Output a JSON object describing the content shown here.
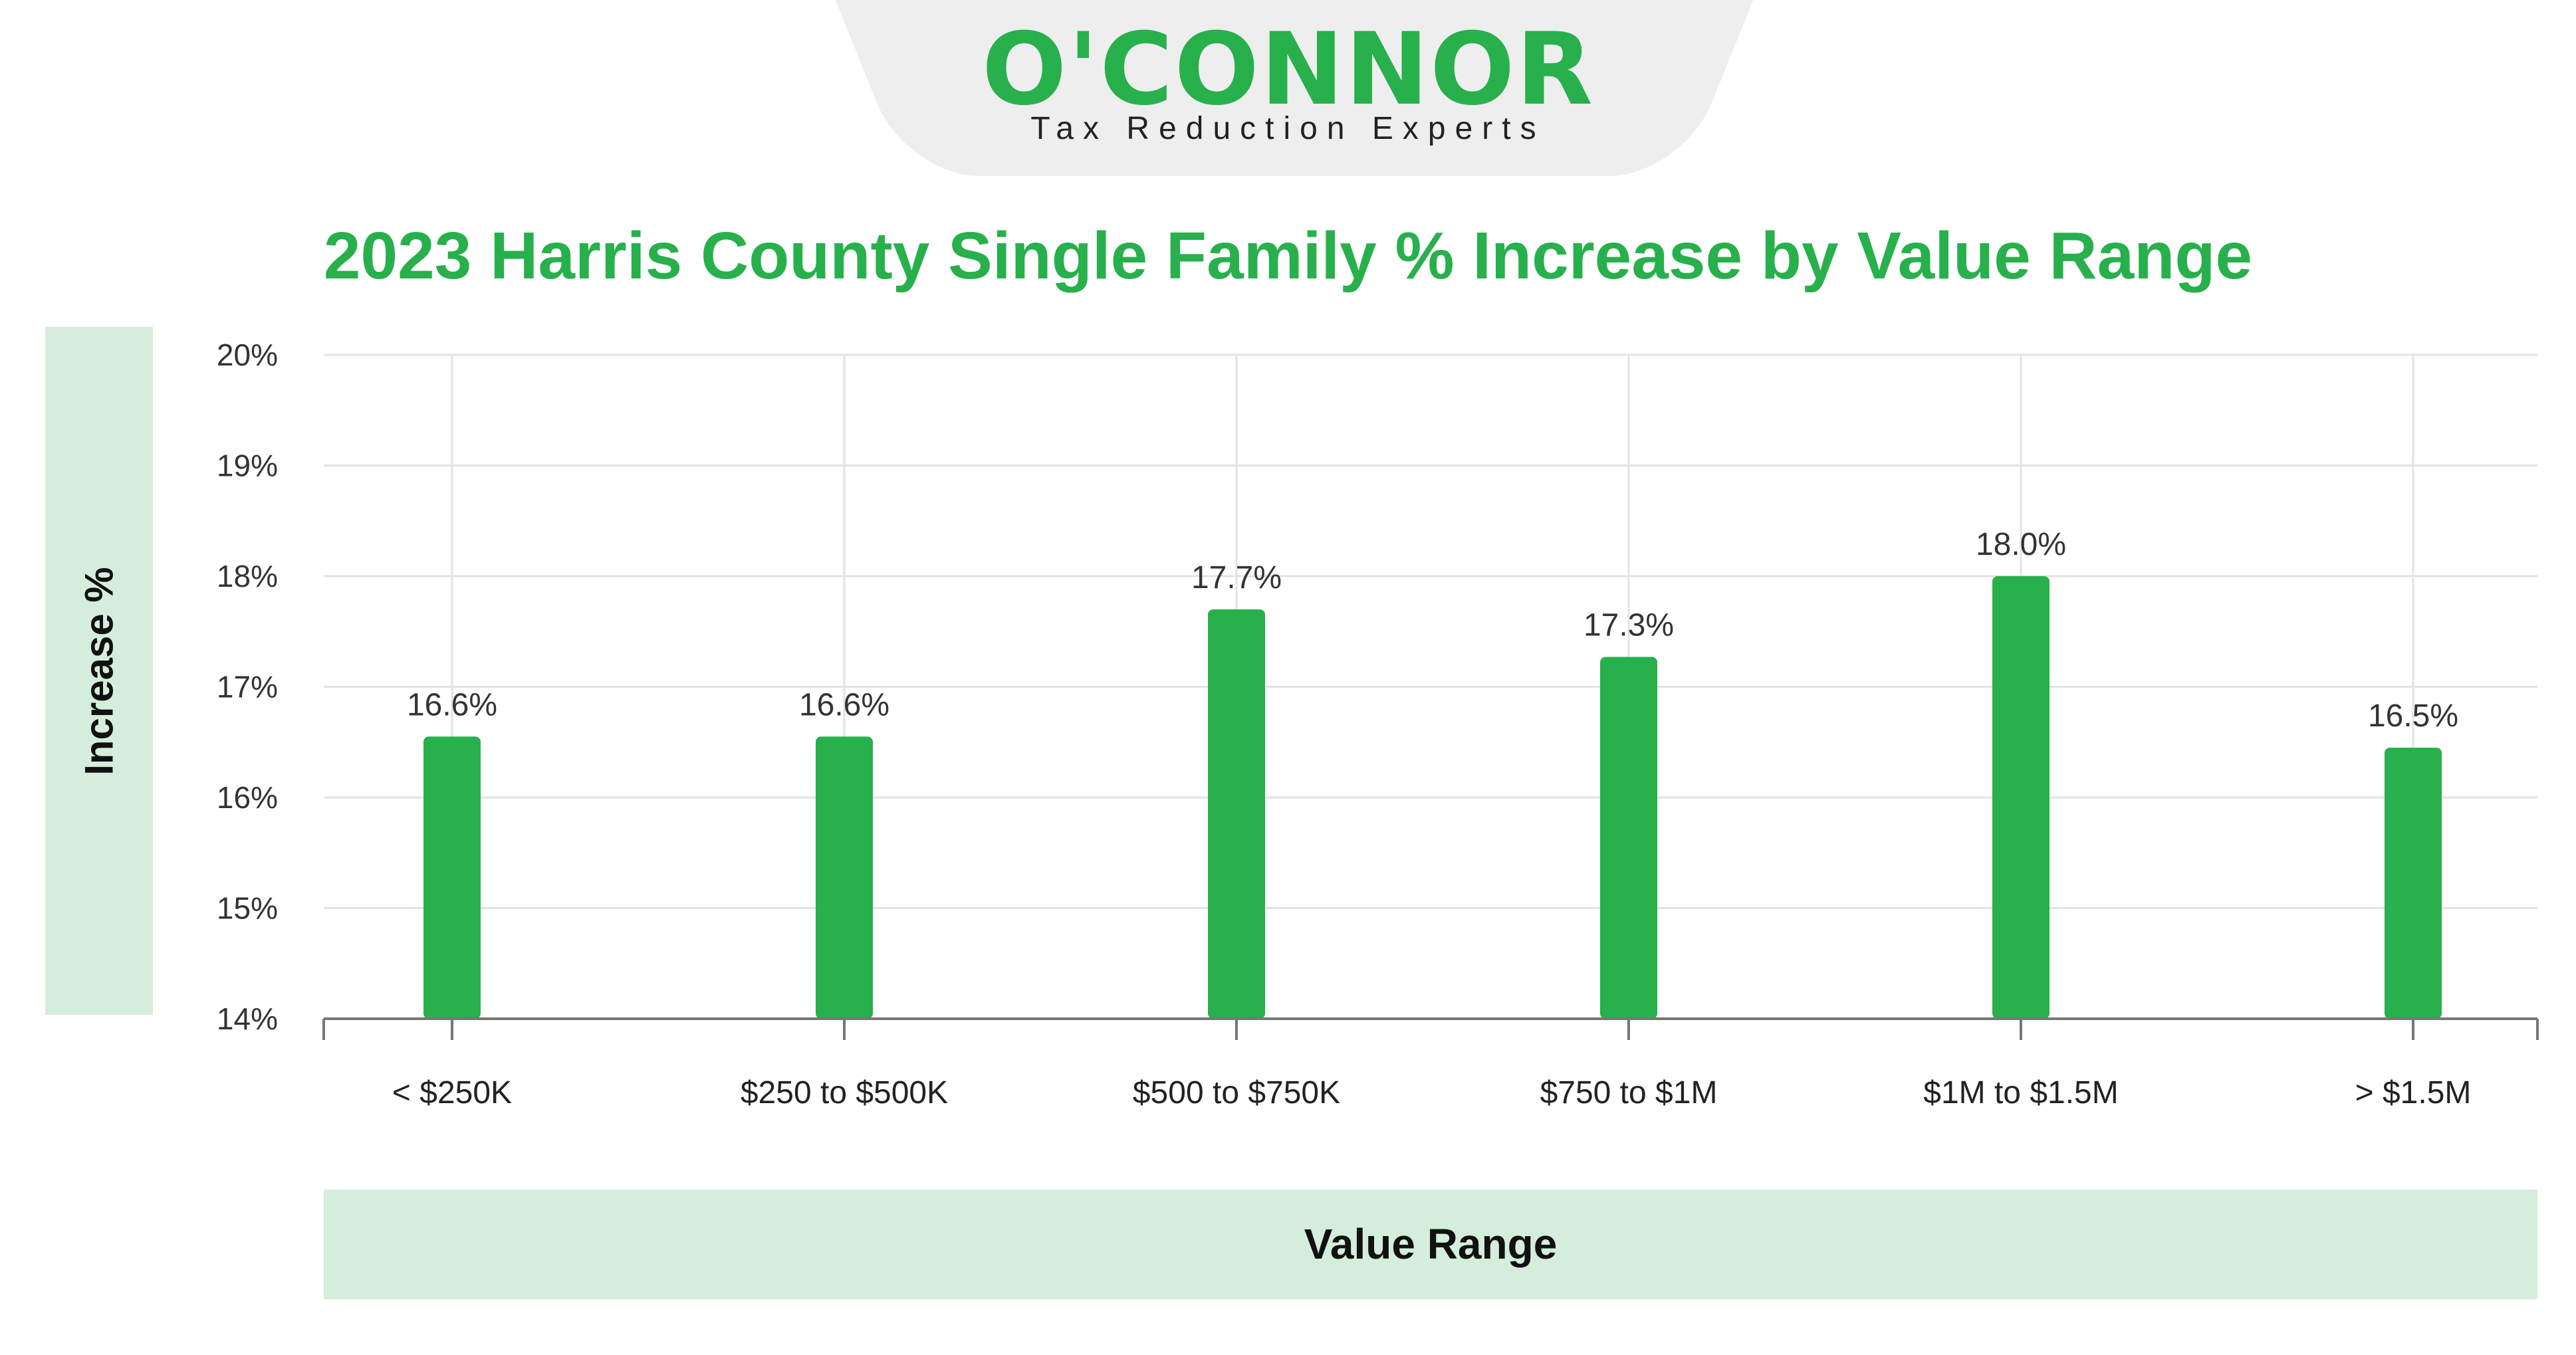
{
  "logo": {
    "wordmark": "O'CONNOR",
    "tagline": "Tax Reduction Experts"
  },
  "colors": {
    "brand_green": "#27b04b",
    "panel_green": "#d5eedb",
    "grid": "#e3e3e3"
  },
  "chart_data": {
    "type": "bar",
    "title": "2023 Harris County Single Family % Increase by Value Range",
    "xlabel": "Value Range",
    "ylabel": "Increase %",
    "categories": [
      "< $250K",
      "$250 to $500K",
      "$500 to $750K",
      "$750 to $1M",
      "$1M to $1.5M",
      "> $1.5M"
    ],
    "values": [
      16.55,
      16.55,
      17.7,
      17.27,
      18.0,
      16.45
    ],
    "data_labels": [
      "16.6%",
      "16.6%",
      "17.7%",
      "17.3%",
      "18.0%",
      "16.5%"
    ],
    "yticks": [
      14,
      15,
      16,
      17,
      18,
      19,
      20
    ],
    "ytick_labels": [
      "14%",
      "15%",
      "16%",
      "17%",
      "18%",
      "19%",
      "20%"
    ],
    "ylim": [
      14,
      20
    ],
    "grid": true,
    "legend": "none",
    "bar_color": "#27b04b"
  }
}
